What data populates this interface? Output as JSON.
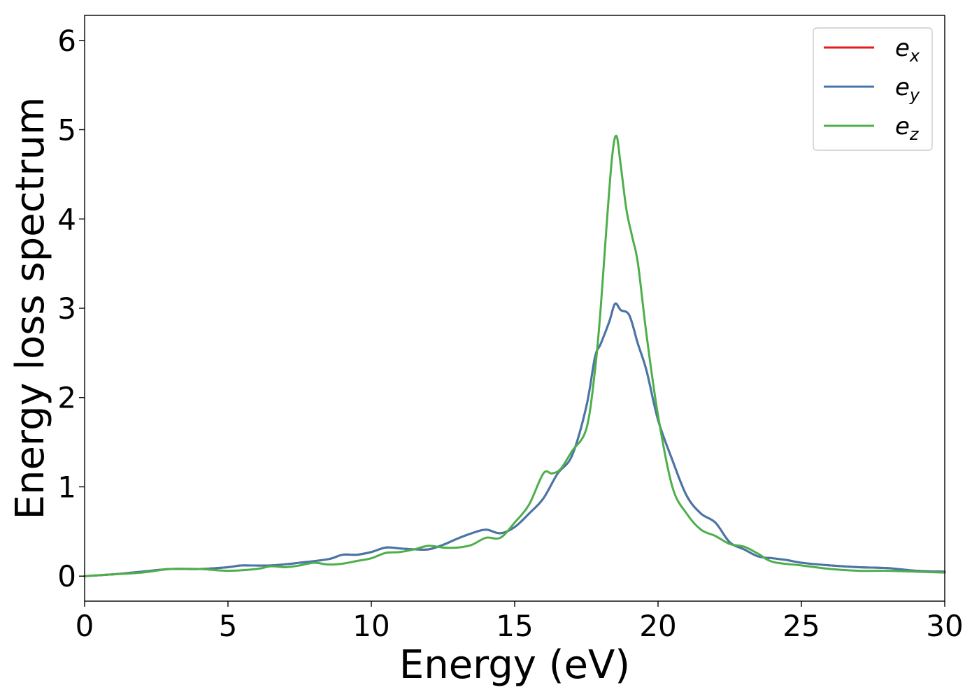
{
  "chart_data": {
    "type": "line",
    "xlabel": "Energy (eV)",
    "ylabel": "Energy loss spectrum",
    "xlim": [
      0,
      30
    ],
    "ylim": [
      -0.28,
      6.28
    ],
    "xticks": [
      "0",
      "5",
      "10",
      "15",
      "20",
      "25",
      "30"
    ],
    "yticks": [
      "0",
      "1",
      "2",
      "3",
      "4",
      "5",
      "6"
    ],
    "grid": false,
    "legend_position": "top-right",
    "series": [
      {
        "name": "e_x",
        "legend_base": "e",
        "legend_sub": "x",
        "color": "#e41a1c",
        "x": [
          0,
          1,
          2,
          3,
          4,
          5,
          5.5,
          6.5,
          7.5,
          8.5,
          9,
          9.5,
          10,
          10.5,
          11,
          11.5,
          12,
          12.5,
          13,
          13.5,
          14,
          14.5,
          15,
          15.5,
          16,
          16.5,
          17,
          17.5,
          17.8,
          18,
          18.3,
          18.5,
          18.7,
          19,
          19.3,
          19.6,
          20,
          20.5,
          21,
          21.5,
          22,
          22.5,
          23,
          23.5,
          24,
          24.5,
          25,
          26,
          27,
          28,
          29,
          30
        ],
        "y": [
          0.0,
          0.02,
          0.05,
          0.08,
          0.08,
          0.1,
          0.12,
          0.12,
          0.15,
          0.19,
          0.24,
          0.24,
          0.27,
          0.32,
          0.31,
          0.3,
          0.3,
          0.35,
          0.42,
          0.48,
          0.52,
          0.48,
          0.55,
          0.7,
          0.87,
          1.15,
          1.35,
          1.9,
          2.45,
          2.6,
          2.85,
          3.05,
          2.98,
          2.92,
          2.6,
          2.3,
          1.75,
          1.3,
          0.9,
          0.7,
          0.6,
          0.38,
          0.3,
          0.22,
          0.2,
          0.18,
          0.15,
          0.12,
          0.1,
          0.09,
          0.06,
          0.05
        ]
      },
      {
        "name": "e_y",
        "legend_base": "e",
        "legend_sub": "y",
        "color": "#4477aa",
        "x": [
          0,
          1,
          2,
          3,
          4,
          5,
          5.5,
          6.5,
          7.5,
          8.5,
          9,
          9.5,
          10,
          10.5,
          11,
          11.5,
          12,
          12.5,
          13,
          13.5,
          14,
          14.5,
          15,
          15.5,
          16,
          16.5,
          17,
          17.5,
          17.8,
          18,
          18.3,
          18.5,
          18.7,
          19,
          19.3,
          19.6,
          20,
          20.5,
          21,
          21.5,
          22,
          22.5,
          23,
          23.5,
          24,
          24.5,
          25,
          26,
          27,
          28,
          29,
          30
        ],
        "y": [
          0.0,
          0.02,
          0.05,
          0.08,
          0.08,
          0.1,
          0.12,
          0.12,
          0.15,
          0.19,
          0.24,
          0.24,
          0.27,
          0.32,
          0.31,
          0.3,
          0.3,
          0.35,
          0.42,
          0.48,
          0.52,
          0.48,
          0.55,
          0.7,
          0.87,
          1.15,
          1.35,
          1.9,
          2.45,
          2.6,
          2.85,
          3.05,
          2.98,
          2.92,
          2.6,
          2.3,
          1.75,
          1.3,
          0.9,
          0.7,
          0.6,
          0.38,
          0.3,
          0.22,
          0.2,
          0.18,
          0.15,
          0.12,
          0.1,
          0.09,
          0.06,
          0.05
        ]
      },
      {
        "name": "e_z",
        "legend_base": "e",
        "legend_sub": "z",
        "color": "#4daf4a",
        "x": [
          0,
          1,
          2,
          3,
          4,
          5,
          6,
          6.5,
          7,
          7.5,
          8,
          8.5,
          9,
          9.5,
          10,
          10.5,
          11,
          11.5,
          12,
          12.5,
          13,
          13.5,
          14,
          14.5,
          15,
          15.5,
          16,
          16.3,
          16.6,
          17,
          17.5,
          17.8,
          18,
          18.2,
          18.4,
          18.55,
          18.7,
          18.9,
          19.1,
          19.3,
          19.6,
          20,
          20.5,
          21,
          21.5,
          22,
          22.5,
          23,
          23.5,
          24,
          25,
          26,
          27,
          28,
          29,
          30
        ],
        "y": [
          0.0,
          0.02,
          0.04,
          0.08,
          0.08,
          0.06,
          0.08,
          0.11,
          0.1,
          0.12,
          0.15,
          0.13,
          0.14,
          0.17,
          0.2,
          0.26,
          0.27,
          0.3,
          0.34,
          0.32,
          0.32,
          0.35,
          0.43,
          0.43,
          0.6,
          0.8,
          1.15,
          1.15,
          1.2,
          1.4,
          1.65,
          2.3,
          3.0,
          3.9,
          4.7,
          4.93,
          4.6,
          4.1,
          3.8,
          3.5,
          2.7,
          1.8,
          1.0,
          0.7,
          0.52,
          0.45,
          0.36,
          0.33,
          0.25,
          0.16,
          0.12,
          0.08,
          0.06,
          0.06,
          0.05,
          0.04
        ]
      }
    ]
  }
}
